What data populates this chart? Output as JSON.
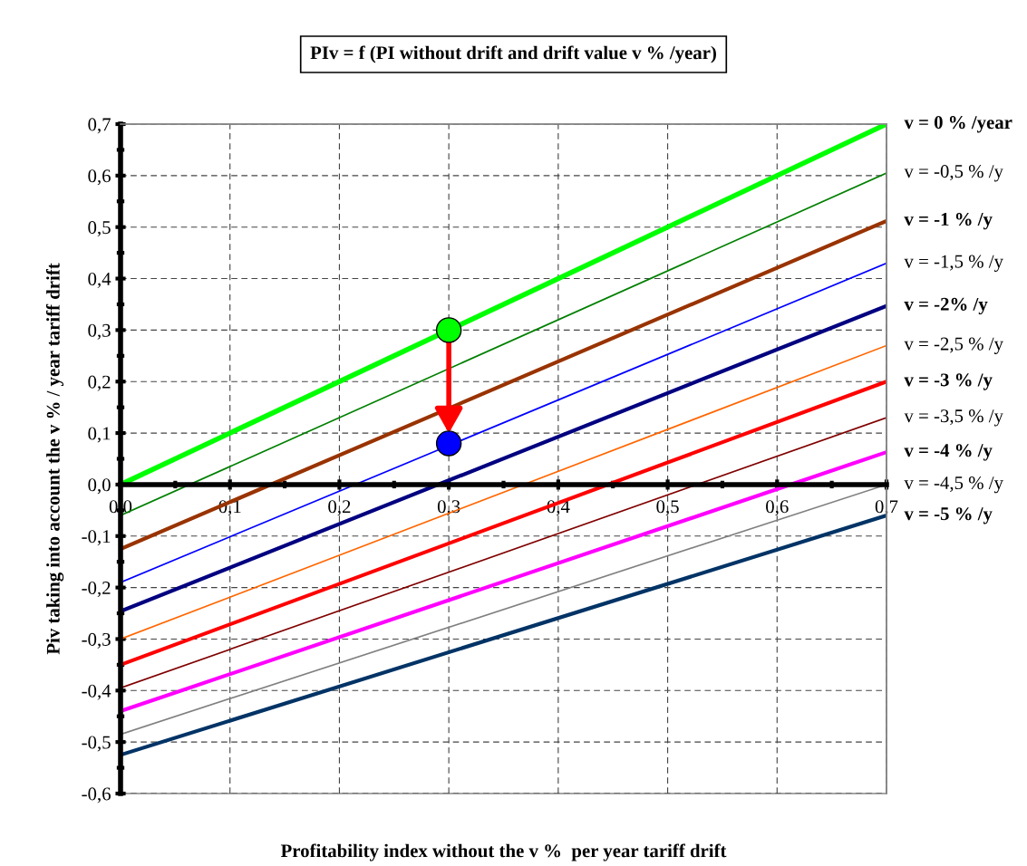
{
  "chart_data": {
    "type": "line",
    "title": "PIv = f (PI without drift and drift value v % /year)",
    "xlabel": "Profitability index without the v %  per year tariff drift",
    "ylabel": "Piv taking into account the v % / year tariff drift",
    "xlim": [
      0,
      0.7
    ],
    "ylim": [
      -0.6,
      0.7
    ],
    "xticks": [
      {
        "value": 0,
        "label": "0,0"
      },
      {
        "value": 0.1,
        "label": "0,1"
      },
      {
        "value": 0.2,
        "label": "0,2"
      },
      {
        "value": 0.3,
        "label": "0,3"
      },
      {
        "value": 0.4,
        "label": "0,4"
      },
      {
        "value": 0.5,
        "label": "0,5"
      },
      {
        "value": 0.6,
        "label": "0,6"
      },
      {
        "value": 0.7,
        "label": "0,7"
      }
    ],
    "yticks": [
      {
        "value": -0.6,
        "label": "-0,6"
      },
      {
        "value": -0.5,
        "label": "-0,5"
      },
      {
        "value": -0.4,
        "label": "-0,4"
      },
      {
        "value": -0.3,
        "label": "-0,3"
      },
      {
        "value": -0.2,
        "label": "-0,2"
      },
      {
        "value": -0.1,
        "label": "-0,1"
      },
      {
        "value": 0,
        "label": "0,0"
      },
      {
        "value": 0.1,
        "label": "0,1"
      },
      {
        "value": 0.2,
        "label": "0,2"
      },
      {
        "value": 0.3,
        "label": "0,3"
      },
      {
        "value": 0.4,
        "label": "0,4"
      },
      {
        "value": 0.5,
        "label": "0,5"
      },
      {
        "value": 0.6,
        "label": "0,6"
      },
      {
        "value": 0.7,
        "label": "0,7"
      }
    ],
    "grid": true,
    "marker": "none",
    "line_style": "solid",
    "series": [
      {
        "name": "v = 0 % /year",
        "color": "#00ff00",
        "x": [
          0,
          0.7
        ],
        "values": [
          0,
          0.7
        ]
      },
      {
        "name": "v = -0,5 % /y",
        "color": "#008000",
        "x": [
          0,
          0.7
        ],
        "values": [
          -0.06,
          0.605
        ]
      },
      {
        "name": "v = -1 % /y",
        "color": "#993300",
        "x": [
          0,
          0.7
        ],
        "values": [
          -0.125,
          0.512
        ]
      },
      {
        "name": "v = -1,5 % /y",
        "color": "#0000ff",
        "x": [
          0,
          0.7
        ],
        "values": [
          -0.19,
          0.43
        ]
      },
      {
        "name": "v = -2% /y",
        "color": "#000080",
        "x": [
          0,
          0.7
        ],
        "values": [
          -0.246,
          0.347
        ]
      },
      {
        "name": "v = -2,5 % /y",
        "color": "#ff6600",
        "x": [
          0,
          0.7
        ],
        "values": [
          -0.3,
          0.27
        ]
      },
      {
        "name": "v = -3 % /y",
        "color": "#ff0000",
        "x": [
          0,
          0.7
        ],
        "values": [
          -0.35,
          0.2
        ]
      },
      {
        "name": "v = -3,5 % /y",
        "color": "#800000",
        "x": [
          0,
          0.7
        ],
        "values": [
          -0.395,
          0.13
        ]
      },
      {
        "name": "v = -4 % /y",
        "color": "#ff00ff",
        "x": [
          0,
          0.7
        ],
        "values": [
          -0.44,
          0.063
        ]
      },
      {
        "name": "v = -4,5 % /y",
        "color": "#808080",
        "x": [
          0,
          0.7
        ],
        "values": [
          -0.485,
          0.0
        ]
      },
      {
        "name": "v = -5 % /y",
        "color": "#003366",
        "x": [
          0,
          0.7
        ],
        "values": [
          -0.525,
          -0.06
        ]
      },
      {
        "type": "scatter",
        "marker": "circle",
        "color": "#00ff00",
        "x": [
          0.3
        ],
        "values": [
          0.3
        ]
      },
      {
        "type": "scatter",
        "marker": "circle",
        "color": "#0000ff",
        "x": [
          0.3
        ],
        "values": [
          0.08
        ]
      }
    ]
  }
}
